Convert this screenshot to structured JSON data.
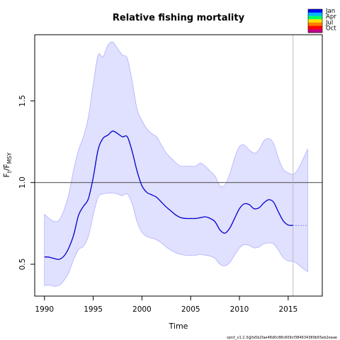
{
  "chart_data": {
    "type": "line",
    "title": "Relative fishing mortality",
    "xlabel": "Time",
    "ylabel_main": "F",
    "ylabel_sub1": "t",
    "ylabel_mid": "/F",
    "ylabel_sub2": "MSY",
    "xlim": [
      1989,
      2018.5
    ],
    "ylim": [
      0.305,
      1.905
    ],
    "x_ticks": [
      1990,
      1995,
      2000,
      2005,
      2010,
      2015
    ],
    "x_tick_labels": [
      "1990",
      "1995",
      "2000",
      "2005",
      "2010",
      "2015"
    ],
    "y_ticks": [
      0.5,
      1.0,
      1.5
    ],
    "y_tick_labels": [
      "0.5",
      "1.0",
      "1.5"
    ],
    "reference_line": {
      "y": 1.0,
      "color": "#5a5a5a"
    },
    "vertical_marker": {
      "x": 2015.5,
      "color": "#bdbdbd"
    },
    "grid": false,
    "legend_position": "top-right",
    "legend": [
      "Jan",
      "Apr",
      "Jul",
      "Oct"
    ],
    "legend_colors": [
      "#0000ff",
      "#00b4ff",
      "#00ff66",
      "#ffe000",
      "#ff7a00",
      "#ff0000",
      "#c0008a"
    ],
    "band_color": "#e0e0ff",
    "band_edge_color": "#a8a8ff",
    "line_color": "#0000cc",
    "forecast_color": "#8a8aff",
    "estimate": [
      [
        1990.0,
        0.545
      ],
      [
        1990.5,
        0.543
      ],
      [
        1991.0,
        0.535
      ],
      [
        1991.5,
        0.53
      ],
      [
        1992.0,
        0.55
      ],
      [
        1992.5,
        0.6
      ],
      [
        1993.0,
        0.68
      ],
      [
        1993.5,
        0.8
      ],
      [
        1994.0,
        0.855
      ],
      [
        1994.5,
        0.9
      ],
      [
        1995.0,
        1.03
      ],
      [
        1995.5,
        1.2
      ],
      [
        1996.0,
        1.27
      ],
      [
        1996.5,
        1.29
      ],
      [
        1997.0,
        1.315
      ],
      [
        1997.5,
        1.3
      ],
      [
        1998.0,
        1.28
      ],
      [
        1998.5,
        1.28
      ],
      [
        1999.0,
        1.19
      ],
      [
        1999.5,
        1.07
      ],
      [
        2000.0,
        0.98
      ],
      [
        2000.5,
        0.94
      ],
      [
        2001.0,
        0.925
      ],
      [
        2001.5,
        0.91
      ],
      [
        2002.0,
        0.88
      ],
      [
        2002.5,
        0.85
      ],
      [
        2003.0,
        0.825
      ],
      [
        2003.5,
        0.8
      ],
      [
        2004.0,
        0.785
      ],
      [
        2004.5,
        0.78
      ],
      [
        2005.0,
        0.78
      ],
      [
        2005.5,
        0.78
      ],
      [
        2006.0,
        0.785
      ],
      [
        2006.5,
        0.79
      ],
      [
        2007.0,
        0.78
      ],
      [
        2007.5,
        0.76
      ],
      [
        2008.0,
        0.71
      ],
      [
        2008.5,
        0.69
      ],
      [
        2009.0,
        0.72
      ],
      [
        2009.5,
        0.78
      ],
      [
        2010.0,
        0.84
      ],
      [
        2010.5,
        0.87
      ],
      [
        2011.0,
        0.865
      ],
      [
        2011.5,
        0.84
      ],
      [
        2012.0,
        0.845
      ],
      [
        2012.5,
        0.875
      ],
      [
        2013.0,
        0.895
      ],
      [
        2013.5,
        0.88
      ],
      [
        2014.0,
        0.82
      ],
      [
        2014.5,
        0.765
      ],
      [
        2015.0,
        0.74
      ],
      [
        2015.5,
        0.738
      ]
    ],
    "forecast": [
      [
        2015.5,
        0.738
      ],
      [
        2016.0,
        0.737
      ],
      [
        2016.5,
        0.737
      ],
      [
        2017.0,
        0.737
      ]
    ],
    "ci_upper": [
      [
        1990.0,
        0.805
      ],
      [
        1990.5,
        0.78
      ],
      [
        1991.0,
        0.762
      ],
      [
        1991.5,
        0.77
      ],
      [
        1992.0,
        0.83
      ],
      [
        1992.5,
        0.93
      ],
      [
        1993.0,
        1.08
      ],
      [
        1993.5,
        1.2
      ],
      [
        1994.0,
        1.28
      ],
      [
        1994.5,
        1.4
      ],
      [
        1995.0,
        1.6
      ],
      [
        1995.5,
        1.78
      ],
      [
        1996.0,
        1.77
      ],
      [
        1996.5,
        1.84
      ],
      [
        1997.0,
        1.86
      ],
      [
        1997.5,
        1.82
      ],
      [
        1998.0,
        1.78
      ],
      [
        1998.5,
        1.76
      ],
      [
        1999.0,
        1.62
      ],
      [
        1999.5,
        1.45
      ],
      [
        2000.0,
        1.38
      ],
      [
        2000.5,
        1.33
      ],
      [
        2001.0,
        1.3
      ],
      [
        2001.5,
        1.28
      ],
      [
        2002.0,
        1.23
      ],
      [
        2002.5,
        1.18
      ],
      [
        2003.0,
        1.15
      ],
      [
        2003.5,
        1.12
      ],
      [
        2004.0,
        1.1
      ],
      [
        2004.5,
        1.1
      ],
      [
        2005.0,
        1.1
      ],
      [
        2005.5,
        1.1
      ],
      [
        2006.0,
        1.12
      ],
      [
        2006.5,
        1.1
      ],
      [
        2007.0,
        1.07
      ],
      [
        2007.5,
        1.04
      ],
      [
        2008.0,
        0.98
      ],
      [
        2008.5,
        0.985
      ],
      [
        2009.0,
        1.05
      ],
      [
        2009.5,
        1.15
      ],
      [
        2010.0,
        1.22
      ],
      [
        2010.5,
        1.23
      ],
      [
        2011.0,
        1.2
      ],
      [
        2011.5,
        1.18
      ],
      [
        2012.0,
        1.2
      ],
      [
        2012.5,
        1.255
      ],
      [
        2013.0,
        1.27
      ],
      [
        2013.5,
        1.24
      ],
      [
        2014.0,
        1.15
      ],
      [
        2014.5,
        1.08
      ],
      [
        2015.0,
        1.06
      ],
      [
        2015.5,
        1.05
      ],
      [
        2016.0,
        1.08
      ],
      [
        2016.5,
        1.14
      ],
      [
        2017.0,
        1.205
      ]
    ],
    "ci_lower": [
      [
        1990.0,
        0.37
      ],
      [
        1990.5,
        0.372
      ],
      [
        1991.0,
        0.365
      ],
      [
        1991.5,
        0.37
      ],
      [
        1992.0,
        0.4
      ],
      [
        1992.5,
        0.45
      ],
      [
        1993.0,
        0.53
      ],
      [
        1993.5,
        0.59
      ],
      [
        1994.0,
        0.61
      ],
      [
        1994.5,
        0.67
      ],
      [
        1995.0,
        0.8
      ],
      [
        1995.5,
        0.91
      ],
      [
        1996.0,
        0.93
      ],
      [
        1996.5,
        0.935
      ],
      [
        1997.0,
        0.935
      ],
      [
        1997.5,
        0.93
      ],
      [
        1998.0,
        0.92
      ],
      [
        1998.5,
        0.93
      ],
      [
        1999.0,
        0.87
      ],
      [
        1999.5,
        0.76
      ],
      [
        2000.0,
        0.695
      ],
      [
        2000.5,
        0.67
      ],
      [
        2001.0,
        0.66
      ],
      [
        2001.5,
        0.65
      ],
      [
        2002.0,
        0.63
      ],
      [
        2002.5,
        0.605
      ],
      [
        2003.0,
        0.585
      ],
      [
        2003.5,
        0.57
      ],
      [
        2004.0,
        0.56
      ],
      [
        2004.5,
        0.555
      ],
      [
        2005.0,
        0.555
      ],
      [
        2005.5,
        0.555
      ],
      [
        2006.0,
        0.56
      ],
      [
        2006.5,
        0.555
      ],
      [
        2007.0,
        0.55
      ],
      [
        2007.5,
        0.535
      ],
      [
        2008.0,
        0.5
      ],
      [
        2008.5,
        0.49
      ],
      [
        2009.0,
        0.51
      ],
      [
        2009.5,
        0.555
      ],
      [
        2010.0,
        0.6
      ],
      [
        2010.5,
        0.62
      ],
      [
        2011.0,
        0.615
      ],
      [
        2011.5,
        0.6
      ],
      [
        2012.0,
        0.605
      ],
      [
        2012.5,
        0.625
      ],
      [
        2013.0,
        0.63
      ],
      [
        2013.5,
        0.625
      ],
      [
        2014.0,
        0.585
      ],
      [
        2014.5,
        0.54
      ],
      [
        2015.0,
        0.52
      ],
      [
        2015.5,
        0.518
      ],
      [
        2016.0,
        0.5
      ],
      [
        2016.5,
        0.475
      ],
      [
        2017.0,
        0.455
      ]
    ],
    "footer": "spict_v1.2.3@fa5b2fae48d0c88c609cf384634389b55eb2eaae"
  }
}
